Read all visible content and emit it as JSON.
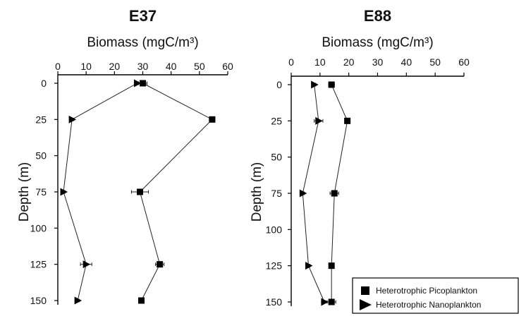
{
  "chart_data": [
    {
      "type": "scatter",
      "title": "E37",
      "xlabel": "Biomass (mgC/m³)",
      "ylabel": "Depth (m)",
      "xlim": [
        0,
        60
      ],
      "ylim": [
        0,
        150
      ],
      "xticks": [
        "0",
        "10",
        "20",
        "30",
        "40",
        "50",
        "60"
      ],
      "yticks": [
        "0",
        "25",
        "50",
        "75",
        "100",
        "125",
        "150"
      ],
      "series": [
        {
          "name": "Heterotrophic Picoplankton",
          "marker": "square",
          "points": [
            {
              "depth": 0,
              "biomass": 30,
              "err": 1.5
            },
            {
              "depth": 25,
              "biomass": 54.5,
              "err": 1
            },
            {
              "depth": 75,
              "biomass": 29,
              "err": 3
            },
            {
              "depth": 125,
              "biomass": 36,
              "err": 1.5
            },
            {
              "depth": 150,
              "biomass": 29.5,
              "err": 1
            }
          ]
        },
        {
          "name": "Heterotrophic Nanoplankton",
          "marker": "triangle",
          "points": [
            {
              "depth": 0,
              "biomass": 28,
              "err": 1
            },
            {
              "depth": 25,
              "biomass": 5,
              "err": 0.5
            },
            {
              "depth": 75,
              "biomass": 2,
              "err": 0.5
            },
            {
              "depth": 125,
              "biomass": 10,
              "err": 2
            },
            {
              "depth": 150,
              "biomass": 7,
              "err": 0.5
            }
          ]
        }
      ]
    },
    {
      "type": "scatter",
      "title": "E88",
      "xlabel": "Biomass (mgC/m³)",
      "ylabel": "Depth (m)",
      "xlim": [
        0,
        60
      ],
      "ylim": [
        0,
        150
      ],
      "xticks": [
        "0",
        "10",
        "20",
        "30",
        "40",
        "50",
        "60"
      ],
      "yticks": [
        "0",
        "25",
        "50",
        "75",
        "100",
        "125",
        "150"
      ],
      "legend": "bottom-right",
      "series": [
        {
          "name": "Heterotrophic Picoplankton",
          "marker": "square",
          "points": [
            {
              "depth": 0,
              "biomass": 14,
              "err": 1
            },
            {
              "depth": 25,
              "biomass": 19.5,
              "err": 0.5
            },
            {
              "depth": 75,
              "biomass": 15,
              "err": 1.5
            },
            {
              "depth": 125,
              "biomass": 14,
              "err": 0.5
            },
            {
              "depth": 150,
              "biomass": 14,
              "err": 1.5
            }
          ]
        },
        {
          "name": "Heterotrophic Nanoplankton",
          "marker": "triangle",
          "points": [
            {
              "depth": 0,
              "biomass": 8,
              "err": 0.5
            },
            {
              "depth": 25,
              "biomass": 9.5,
              "err": 1.5
            },
            {
              "depth": 75,
              "biomass": 4,
              "err": 0.5
            },
            {
              "depth": 125,
              "biomass": 6,
              "err": 0.5
            },
            {
              "depth": 150,
              "biomass": 11.5,
              "err": 1
            }
          ]
        }
      ]
    }
  ],
  "colors": {
    "markers": "#000000",
    "lines": "#222222"
  }
}
